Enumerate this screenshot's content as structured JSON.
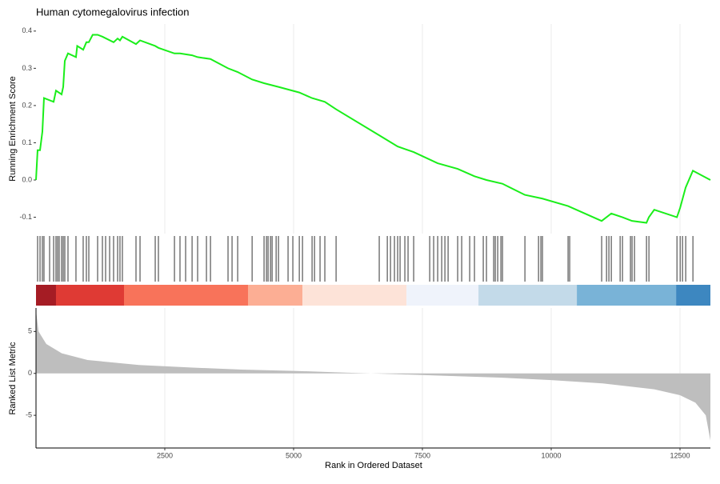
{
  "chart_data": {
    "type": "gsea",
    "title": "Human cytomegalovirus infection",
    "xlabel": "Rank in Ordered Dataset",
    "xlim": [
      0,
      13090
    ],
    "xticks": [
      2500,
      5000,
      7500,
      10000,
      12500
    ],
    "grid": true,
    "es": {
      "ylabel": "Running Enrichment Score",
      "color": "#1aee1a",
      "ylim": [
        -0.144,
        0.419
      ],
      "yticks": [
        0.4,
        0.3,
        0.2,
        0.1,
        {
          "value": 0,
          "label": "0.0"
        },
        -0.1
      ],
      "x": [
        0,
        31,
        78,
        124,
        155,
        342,
        388,
        497,
        528,
        559,
        621,
        776,
        800,
        916,
        978,
        1025,
        1100,
        1196,
        1289,
        1506,
        1584,
        1630,
        1677,
        1941,
        2019,
        2314,
        2376,
        2687,
        2795,
        3029,
        3137,
        3386,
        3727,
        3914,
        4194,
        4426,
        4706,
        5110,
        5358,
        5606,
        5824,
        6662,
        7019,
        7330,
        7796,
        8184,
        8510,
        8743,
        9054,
        9489,
        9830,
        10327,
        10979,
        11166,
        11383,
        11569,
        11849,
        11896,
        12000,
        12440,
        12502,
        12610,
        12750,
        13090
      ],
      "values": [
        0,
        0.08,
        0.08,
        0.13,
        0.22,
        0.21,
        0.24,
        0.23,
        0.25,
        0.32,
        0.34,
        0.33,
        0.36,
        0.35,
        0.37,
        0.37,
        0.39,
        0.39,
        0.385,
        0.37,
        0.38,
        0.375,
        0.385,
        0.365,
        0.375,
        0.36,
        0.355,
        0.34,
        0.34,
        0.335,
        0.33,
        0.325,
        0.3,
        0.29,
        0.27,
        0.26,
        0.25,
        0.235,
        0.22,
        0.21,
        0.19,
        0.12,
        0.09,
        0.075,
        0.045,
        0.03,
        0.01,
        0,
        -0.01,
        -0.04,
        -0.05,
        -0.07,
        -0.11,
        -0.09,
        -0.1,
        -0.11,
        -0.115,
        -0.1,
        -0.08,
        -0.1,
        -0.075,
        -0.02,
        0.025,
        0
      ]
    },
    "hits": [
      31,
      78,
      124,
      155,
      264,
      342,
      388,
      419,
      450,
      497,
      528,
      559,
      621,
      776,
      916,
      978,
      1025,
      1196,
      1289,
      1351,
      1429,
      1506,
      1584,
      1630,
      1677,
      1941,
      2019,
      2314,
      2376,
      2687,
      2795,
      2904,
      3029,
      3137,
      3308,
      3386,
      3727,
      3805,
      3914,
      4194,
      4426,
      4473,
      4504,
      4551,
      4582,
      4660,
      4706,
      4892,
      4985,
      5110,
      5172,
      5358,
      5405,
      5513,
      5606,
      5824,
      6662,
      6818,
      6880,
      6957,
      7019,
      7066,
      7159,
      7221,
      7330,
      7641,
      7718,
      7796,
      7874,
      7936,
      7998,
      8184,
      8262,
      8417,
      8510,
      8681,
      8743,
      8883,
      8914,
      8961,
      9023,
      9054,
      9489,
      9753,
      9799,
      9830,
      10327,
      10358,
      10979,
      11073,
      11119,
      11166,
      11337,
      11383,
      11538,
      11569,
      11616,
      11849,
      11896,
      12440,
      12502,
      12548,
      12610,
      12750
    ],
    "band": [
      {
        "from": 0,
        "to": 388,
        "color": "#a51c24"
      },
      {
        "from": 388,
        "to": 1708,
        "color": "#df3a34"
      },
      {
        "from": 1708,
        "to": 4115,
        "color": "#f8735a"
      },
      {
        "from": 4115,
        "to": 5172,
        "color": "#fcae94"
      },
      {
        "from": 5172,
        "to": 7190,
        "color": "#fde3d8"
      },
      {
        "from": 7190,
        "to": 8588,
        "color": "#eff3fb"
      },
      {
        "from": 8588,
        "to": 10498,
        "color": "#c3dae9"
      },
      {
        "from": 10498,
        "to": 12424,
        "color": "#79b3d7"
      },
      {
        "from": 12424,
        "to": 13090,
        "color": "#3d87c0"
      }
    ],
    "metric": {
      "ylabel": "Ranked List Metric",
      "color": "#bebebe",
      "ylim": [
        -8.9,
        7.8
      ],
      "yticks": [
        5,
        0,
        -5
      ],
      "x": [
        0,
        50,
        200,
        500,
        1000,
        2000,
        3000,
        4000,
        5000,
        6000,
        6500,
        7000,
        8000,
        9000,
        10000,
        11000,
        12000,
        12500,
        12800,
        13000,
        13090
      ],
      "values": [
        7.5,
        5,
        3.5,
        2.4,
        1.6,
        1.0,
        0.7,
        0.45,
        0.3,
        0.1,
        0,
        -0.1,
        -0.3,
        -0.5,
        -0.8,
        -1.2,
        -1.9,
        -2.6,
        -3.5,
        -5,
        -8
      ]
    }
  }
}
